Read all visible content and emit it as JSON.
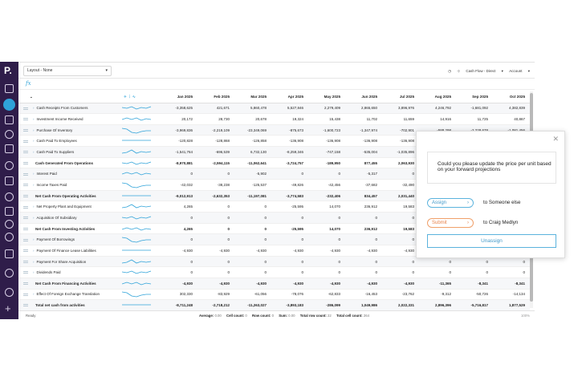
{
  "toolbar": {
    "layout_label": "Layout - None",
    "view_label": "Cash Flow - Direct",
    "account_label": "Account"
  },
  "formula_bar": {
    "fx": "fx"
  },
  "columns": [
    "Jan 2025",
    "Feb 2025",
    "Mar 2025",
    "Apr 2025",
    "May 2025",
    "Jun 2025",
    "Jul 2025",
    "Aug 2025",
    "Sep 2025",
    "Oct 2025"
  ],
  "rows": [
    {
      "label": "Cash Receipts From Customers",
      "bold": false,
      "expandable": true,
      "values": [
        "-3,358,625",
        "421,671",
        "5,860,478",
        "5,527,846",
        "2,279,409",
        "2,865,650",
        "3,896,976",
        "4,246,792",
        "-1,681,092",
        "4,382,839"
      ]
    },
    {
      "label": "Investment Income Received",
      "bold": false,
      "expandable": true,
      "values": [
        "20,172",
        "28,730",
        "20,678",
        "19,324",
        "15,438",
        "11,702",
        "11,659",
        "14,916",
        "11,725",
        "40,867"
      ]
    },
    {
      "label": "Purchase Of Inventory",
      "bold": false,
      "expandable": true,
      "values": [
        "-3,969,836",
        "-2,219,109",
        "-23,349,069",
        "-875,673",
        "-1,600,723",
        "-1,347,974",
        "-702,901",
        "-588,298",
        "-2,228,678",
        "-1,081,456"
      ]
    },
    {
      "label": "Cash Paid To Employees",
      "bold": false,
      "expandable": true,
      "values": [
        "-120,828",
        "-128,868",
        "-126,858",
        "-136,908",
        "-136,908",
        "-136,908",
        "-136,908",
        "",
        "",
        ""
      ]
    },
    {
      "label": "Cash Paid To Suppliers",
      "bold": false,
      "expandable": true,
      "values": [
        "-1,541,764",
        "-696,539",
        "6,732,130",
        "-8,259,346",
        "-747,158",
        "-535,004",
        "-1,035,896",
        "",
        "",
        ""
      ]
    },
    {
      "label": "Cash Generated From Operations",
      "bold": true,
      "expandable": false,
      "values": [
        "-8,970,881",
        "-2,594,115",
        "-11,062,641",
        "-3,724,757",
        "-189,950",
        "877,455",
        "2,063,930",
        "",
        "",
        ""
      ]
    },
    {
      "label": "Interest Paid",
      "bold": false,
      "expandable": true,
      "values": [
        "0",
        "0",
        "-5,902",
        "0",
        "0",
        "-5,317",
        "0",
        "",
        "",
        ""
      ]
    },
    {
      "label": "Income Taxes Paid",
      "bold": false,
      "expandable": true,
      "values": [
        "-42,032",
        "-38,238",
        "-125,537",
        "-49,826",
        "-42,456",
        "-37,682",
        "-32,490",
        "",
        "",
        ""
      ]
    },
    {
      "label": "Net Cash From Operating Activities",
      "bold": true,
      "expandable": false,
      "values": [
        "-9,012,913",
        "-2,632,353",
        "-11,197,081",
        "-3,774,583",
        "-232,406",
        "834,457",
        "2,031,440",
        "",
        "",
        ""
      ]
    },
    {
      "label": "Net Property Plant and Equipment",
      "bold": false,
      "expandable": true,
      "values": [
        "4,265",
        "0",
        "0",
        "-25,595",
        "14,070",
        "236,912",
        "19,583",
        "",
        "",
        ""
      ]
    },
    {
      "label": "Acquisition Of Subsidiary",
      "bold": false,
      "expandable": true,
      "values": [
        "0",
        "0",
        "0",
        "0",
        "0",
        "0",
        "0",
        "",
        "",
        ""
      ]
    },
    {
      "label": "Net Cash From Investing Activities",
      "bold": true,
      "expandable": false,
      "values": [
        "4,265",
        "0",
        "0",
        "-25,595",
        "14,070",
        "236,912",
        "19,583",
        "",
        "",
        ""
      ]
    },
    {
      "label": "Payment Of Borrowings",
      "bold": false,
      "expandable": true,
      "values": [
        "0",
        "0",
        "0",
        "0",
        "0",
        "0",
        "0",
        "",
        "",
        ""
      ]
    },
    {
      "label": "Payment Of Finance Lease Liabilities",
      "bold": false,
      "expandable": true,
      "values": [
        "-4,930",
        "-4,930",
        "-4,930",
        "-4,930",
        "-4,930",
        "-4,930",
        "-4,930",
        "",
        "",
        ""
      ]
    },
    {
      "label": "Payment For Share Acquisition",
      "bold": false,
      "expandable": true,
      "values": [
        "0",
        "0",
        "0",
        "0",
        "0",
        "0",
        "0",
        "0",
        "0",
        "0"
      ]
    },
    {
      "label": "Dividends Paid",
      "bold": false,
      "expandable": true,
      "values": [
        "0",
        "0",
        "0",
        "0",
        "0",
        "0",
        "0",
        "0",
        "0",
        "0"
      ]
    },
    {
      "label": "Net Cash From Financing Activities",
      "bold": true,
      "expandable": false,
      "values": [
        "-4,930",
        "-4,930",
        "-4,930",
        "-4,930",
        "-4,930",
        "-4,930",
        "-4,930",
        "-11,365",
        "-8,341",
        "-8,341"
      ]
    },
    {
      "label": "Effect Of Foreign Exchange Translation",
      "bold": false,
      "expandable": true,
      "values": [
        "302,330",
        "-83,929",
        "-61,056",
        "-78,076",
        "-62,833",
        "-16,453",
        "-23,762",
        "-9,312",
        "-50,726",
        "-14,134"
      ]
    },
    {
      "label": "Total net cash from activities",
      "bold": true,
      "expandable": false,
      "values": [
        "-8,711,248",
        "-2,718,212",
        "-11,263,027",
        "-3,893,183",
        "-286,099",
        "1,049,986",
        "2,022,331",
        "2,896,396",
        "-5,716,817",
        "1,877,529"
      ]
    }
  ],
  "statusbar": {
    "ready": "Ready",
    "average_label": "Average:",
    "average_value": "0.00",
    "cell_count_label": "Cell count:",
    "cell_count_value": "0",
    "row_count_label": "Row count:",
    "row_count_value": "0",
    "sum_label": "Sum:",
    "sum_value": "0.00",
    "total_row_label": "Total row count:",
    "total_row_value": "22",
    "total_cell_label": "Total cell count:",
    "total_cell_value": "264",
    "zoom": "100%"
  },
  "popup": {
    "message": "Could you please update the price per unit based on your forward projections",
    "assign_label": "Assign",
    "assign_target": "to Someone else",
    "submit_label": "Submit",
    "submit_target": "to Craig Medlyn",
    "unassign_label": "Unassign"
  },
  "colors": {
    "sidebar": "#2f1d4a",
    "accent": "#2fa3d9",
    "assign": "#3f98c9",
    "submit": "#e8834a",
    "sparkline": "#2fa3d9"
  }
}
